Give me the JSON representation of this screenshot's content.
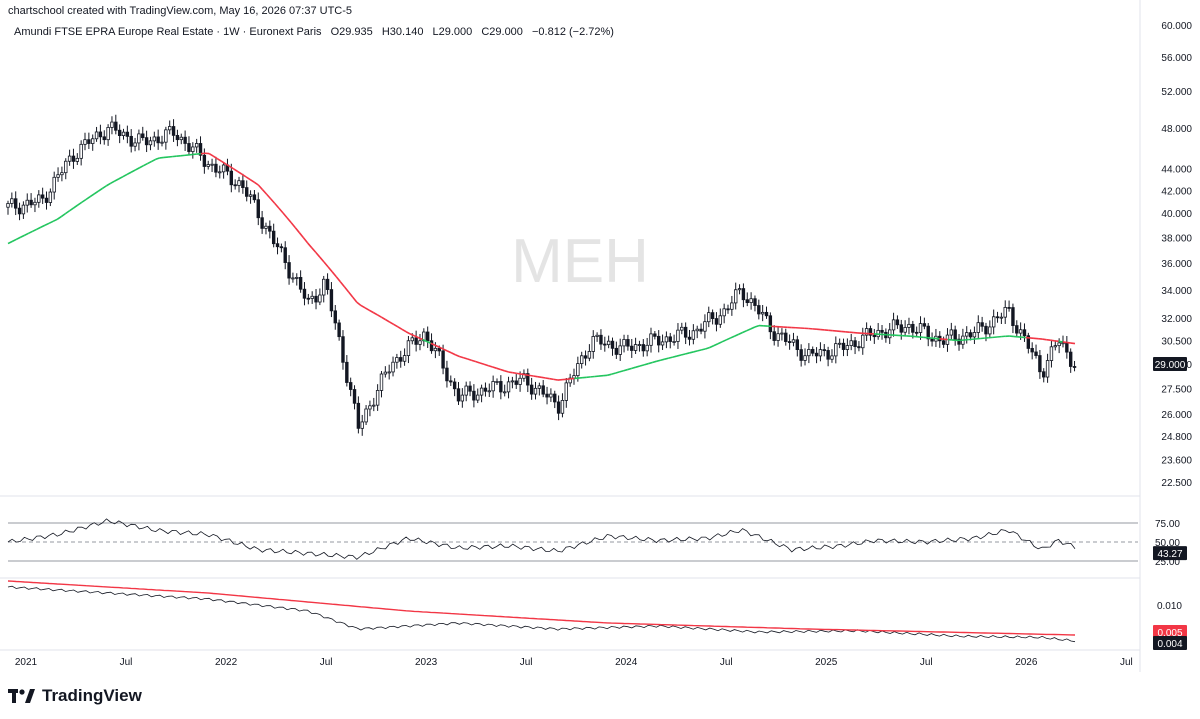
{
  "header": {
    "credit": "chartschool created with TradingView.com, May 16, 2026 07:37 UTC-5"
  },
  "legend": {
    "symbol": "Amundi FTSE EPRA Europe Real Estate · 1W · Euronext Paris",
    "open": "O29.935",
    "high": "H30.140",
    "low": "L29.000",
    "close": "C29.000",
    "change": "−0.812 (−2.72%)"
  },
  "watermark": "MEH",
  "footer": {
    "brand": "TradingView"
  },
  "colors": {
    "ma_up": "#22c55e",
    "ma_down": "#f23645",
    "candle": "#131722",
    "grid_line": "#e0e3eb",
    "badge_bg": "#131722",
    "badge_red": "#f23645"
  },
  "price_axis": {
    "ticks": [
      "60.000",
      "56.000",
      "52.000",
      "48.000",
      "44.000",
      "42.000",
      "40.000",
      "38.000",
      "36.000",
      "34.000",
      "32.000",
      "30.500",
      "29.000",
      "27.500",
      "26.000",
      "24.800",
      "23.600",
      "22.500"
    ],
    "current_label": "29.000"
  },
  "rsi_axis": {
    "ticks": [
      "75.00",
      "50.00",
      "25.00"
    ],
    "current_label": "43.27"
  },
  "ind_axis": {
    "ticks": [
      "0.010"
    ],
    "label_red": "0.005",
    "label_dark": "0.004"
  },
  "time_axis": [
    "2021",
    "Jul",
    "2022",
    "Jul",
    "2023",
    "Jul",
    "2024",
    "Jul",
    "2025",
    "Jul",
    "2026",
    "Jul"
  ],
  "chart_data": {
    "type": "line",
    "title": "Amundi FTSE EPRA Europe Real Estate · 1W · Euronext Paris",
    "x_start": "2021-01",
    "x_end": "2026-05",
    "ylim": [
      22.5,
      60
    ],
    "price_points": [
      [
        "2021-01",
        40.5
      ],
      [
        "2021-03",
        41.0
      ],
      [
        "2021-05",
        45.5
      ],
      [
        "2021-07",
        48.0
      ],
      [
        "2021-09",
        46.5
      ],
      [
        "2021-11",
        47.5
      ],
      [
        "2022-01",
        44.5
      ],
      [
        "2022-03",
        42.5
      ],
      [
        "2022-05",
        37.5
      ],
      [
        "2022-07",
        33.0
      ],
      [
        "2022-08",
        34.5
      ],
      [
        "2022-10",
        25.2
      ],
      [
        "2022-12",
        29.0
      ],
      [
        "2023-02",
        31.0
      ],
      [
        "2023-04",
        27.0
      ],
      [
        "2023-06",
        27.5
      ],
      [
        "2023-08",
        28.0
      ],
      [
        "2023-10",
        26.5
      ],
      [
        "2023-12",
        30.5
      ],
      [
        "2024-02",
        30.0
      ],
      [
        "2024-04",
        30.5
      ],
      [
        "2024-06",
        31.0
      ],
      [
        "2024-08",
        32.5
      ],
      [
        "2024-09",
        34.0
      ],
      [
        "2024-11",
        31.0
      ],
      [
        "2025-01",
        29.5
      ],
      [
        "2025-03",
        30.0
      ],
      [
        "2025-05",
        31.0
      ],
      [
        "2025-07",
        31.5
      ],
      [
        "2025-09",
        30.5
      ],
      [
        "2025-11",
        31.0
      ],
      [
        "2026-01",
        32.5
      ],
      [
        "2026-03",
        28.5
      ],
      [
        "2026-04",
        30.5
      ],
      [
        "2026-05",
        29.0
      ]
    ],
    "moving_average": [
      [
        "2021-01",
        37.5
      ],
      [
        "2021-04",
        39.5
      ],
      [
        "2021-07",
        42.5
      ],
      [
        "2021-10",
        45.0
      ],
      [
        "2022-01",
        45.5
      ],
      [
        "2022-04",
        42.5
      ],
      [
        "2022-07",
        37.5
      ],
      [
        "2022-10",
        33.0
      ],
      [
        "2023-01",
        31.0
      ],
      [
        "2023-04",
        29.5
      ],
      [
        "2023-07",
        28.5
      ],
      [
        "2023-10",
        28.0
      ],
      [
        "2024-01",
        28.3
      ],
      [
        "2024-04",
        29.2
      ],
      [
        "2024-07",
        30.0
      ],
      [
        "2024-10",
        31.5
      ],
      [
        "2025-01",
        31.3
      ],
      [
        "2025-04",
        31.0
      ],
      [
        "2025-07",
        30.8
      ],
      [
        "2025-10",
        30.5
      ],
      [
        "2026-01",
        30.8
      ],
      [
        "2026-03",
        30.6
      ],
      [
        "2026-05",
        30.3
      ]
    ],
    "rsi_points": [
      [
        "2021-01",
        50
      ],
      [
        "2021-04",
        60
      ],
      [
        "2021-07",
        78
      ],
      [
        "2021-10",
        65
      ],
      [
        "2022-01",
        60
      ],
      [
        "2022-04",
        40
      ],
      [
        "2022-07",
        35
      ],
      [
        "2022-10",
        30
      ],
      [
        "2023-01",
        55
      ],
      [
        "2023-04",
        42
      ],
      [
        "2023-07",
        45
      ],
      [
        "2023-10",
        38
      ],
      [
        "2024-01",
        58
      ],
      [
        "2024-04",
        52
      ],
      [
        "2024-07",
        55
      ],
      [
        "2024-09",
        66
      ],
      [
        "2024-12",
        40
      ],
      [
        "2025-03",
        45
      ],
      [
        "2025-05",
        52
      ],
      [
        "2025-08",
        50
      ],
      [
        "2025-11",
        55
      ],
      [
        "2026-01",
        66
      ],
      [
        "2026-03",
        40
      ],
      [
        "2026-04",
        52
      ],
      [
        "2026-05",
        43.27
      ]
    ],
    "ind_red": [
      [
        "2021-01",
        0.014
      ],
      [
        "2022-01",
        0.012
      ],
      [
        "2023-01",
        0.009
      ],
      [
        "2024-01",
        0.007
      ],
      [
        "2025-01",
        0.006
      ],
      [
        "2026-05",
        0.005
      ]
    ],
    "ind_dark": [
      [
        "2021-01",
        0.013
      ],
      [
        "2021-07",
        0.012
      ],
      [
        "2022-01",
        0.011
      ],
      [
        "2022-07",
        0.009
      ],
      [
        "2022-10",
        0.006
      ],
      [
        "2023-04",
        0.007
      ],
      [
        "2023-10",
        0.006
      ],
      [
        "2024-04",
        0.0065
      ],
      [
        "2024-10",
        0.0055
      ],
      [
        "2025-04",
        0.0057
      ],
      [
        "2025-10",
        0.0048
      ],
      [
        "2026-03",
        0.0046
      ],
      [
        "2026-05",
        0.004
      ]
    ]
  }
}
